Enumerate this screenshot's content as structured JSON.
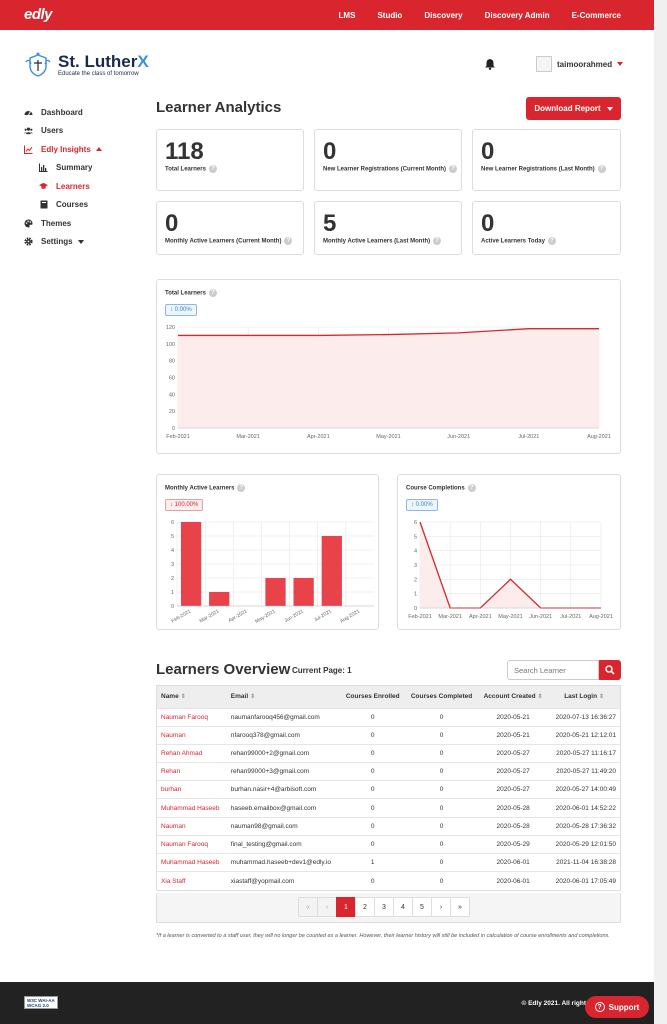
{
  "topbar": {
    "logo": "edly",
    "nav": [
      "LMS",
      "Studio",
      "Discovery",
      "Discovery Admin",
      "E-Commerce"
    ]
  },
  "brand": {
    "name_main": "St. Luther",
    "name_accent": "X",
    "tagline": "Educate the class of tomorrow"
  },
  "user": {
    "name": "taimoorahmed"
  },
  "sidebar": {
    "items": [
      {
        "label": "Dashboard",
        "icon": "dashboard-icon"
      },
      {
        "label": "Users",
        "icon": "users-icon"
      },
      {
        "label": "Edly Insights",
        "icon": "chart-icon"
      },
      {
        "label": "Summary",
        "icon": "bar-chart-icon"
      },
      {
        "label": "Learners",
        "icon": "graduation-cap-icon"
      },
      {
        "label": "Courses",
        "icon": "book-icon"
      },
      {
        "label": "Themes",
        "icon": "palette-icon"
      },
      {
        "label": "Settings",
        "icon": "gear-icon"
      }
    ]
  },
  "main": {
    "title": "Learner Analytics",
    "download_label": "Download Report"
  },
  "stats": [
    {
      "value": "118",
      "label": "Total Learners"
    },
    {
      "value": "0",
      "label": "New Learner Registrations (Current Month)"
    },
    {
      "value": "0",
      "label": "New Learner Registrations (Last Month)"
    },
    {
      "value": "0",
      "label": "Monthly Active Learners (Current Month)"
    },
    {
      "value": "5",
      "label": "Monthly Active Learners (Last Month)"
    },
    {
      "value": "0",
      "label": "Active Learners Today"
    }
  ],
  "chart_data": [
    {
      "type": "area",
      "title": "Total Learners",
      "badge": "0.00%",
      "x": [
        "Feb-2021",
        "Mar-2021",
        "Apr-2021",
        "May-2021",
        "Jun-2021",
        "Jul-2021",
        "Aug-2021"
      ],
      "values": [
        110,
        110,
        110,
        111,
        113,
        118,
        118
      ],
      "ylim": [
        0,
        120
      ],
      "yticks": [
        0,
        20,
        40,
        60,
        80,
        100,
        120
      ],
      "grid": true,
      "color": "#d9262e"
    },
    {
      "type": "bar",
      "title": "Monthly Active Learners",
      "badge": "100.00%",
      "categories": [
        "Feb-2021",
        "Mar-2021",
        "Apr-2021",
        "May-2021",
        "Jun-2021",
        "Jul-2021",
        "Aug-2021"
      ],
      "values": [
        6,
        1,
        0,
        2,
        2,
        5,
        0
      ],
      "ylim": [
        0,
        6
      ],
      "yticks": [
        0,
        1,
        2,
        3,
        4,
        5,
        6
      ],
      "grid": true,
      "color": "#e8424a"
    },
    {
      "type": "area",
      "title": "Course Completions",
      "badge": "0.00%",
      "x": [
        "Feb-2021",
        "Mar-2021",
        "Apr-2021",
        "May-2021",
        "Jun-2021",
        "Jul-2021",
        "Aug-2021"
      ],
      "values": [
        6,
        0,
        0,
        2,
        0,
        0,
        0
      ],
      "ylim": [
        0,
        6
      ],
      "yticks": [
        0,
        1,
        2,
        3,
        4,
        5,
        6
      ],
      "grid": true,
      "color": "#d9262e"
    }
  ],
  "overview": {
    "title": "Learners Overview",
    "current_page": "Current Page: 1",
    "search_placeholder": "Search Learner",
    "columns": [
      "Name",
      "Email",
      "Courses Enrolled",
      "Courses Completed",
      "Account Created",
      "Last Login"
    ],
    "rows": [
      [
        "Nauman Farooq",
        "naumanfarooq456@gmail.com",
        "0",
        "0",
        "2020-05-21",
        "2020-07-13 16:36:27"
      ],
      [
        "Nauman",
        "nfarooq378@gmail.com",
        "0",
        "0",
        "2020-05-21",
        "2020-05-21 12:12:01"
      ],
      [
        "Rehan Ahmad",
        "rehan99000+2@gmail.com",
        "0",
        "0",
        "2020-05-27",
        "2020-05-27 11:16:17"
      ],
      [
        "Rehan",
        "rehan99000+3@gmail.com",
        "0",
        "0",
        "2020-05-27",
        "2020-05-27 11:49:20"
      ],
      [
        "burhan",
        "burhan.nasir+4@arbisoft.com",
        "0",
        "0",
        "2020-05-27",
        "2020-05-27 14:00:49"
      ],
      [
        "Muhammad Haseeb",
        "haseeb.emailbox@gmail.com",
        "0",
        "0",
        "2020-05-28",
        "2020-06-01 14:52:22"
      ],
      [
        "Nauman",
        "nauman98@gmail.com",
        "0",
        "0",
        "2020-05-28",
        "2020-05-28 17:36:32"
      ],
      [
        "Nauman Farooq",
        "final_testing@gmail.com",
        "0",
        "0",
        "2020-05-29",
        "2020-05-29 12:01:50"
      ],
      [
        "Muhammad Haseeb",
        "muhammad.haseeb+dev1@edly.io",
        "1",
        "0",
        "2020-06-01",
        "2021-11-04 16:38:28"
      ],
      [
        "Xia Staff",
        "xiastaff@yopmail.com",
        "0",
        "0",
        "2020-06-01",
        "2020-06-01 17:05:49"
      ]
    ],
    "pager": [
      "«",
      "‹",
      "1",
      "2",
      "3",
      "4",
      "5",
      "›",
      "»"
    ],
    "note": "*If a learner is converted to a staff user, they will no longer be counted as a learner. However, their learner history will still be included in calculation of course enrollments and completions."
  },
  "footer": {
    "wcag": "W3C WAI-AA WCAG 2.0",
    "copyright": "© Edly 2021. All right",
    "support_label": "Support"
  }
}
